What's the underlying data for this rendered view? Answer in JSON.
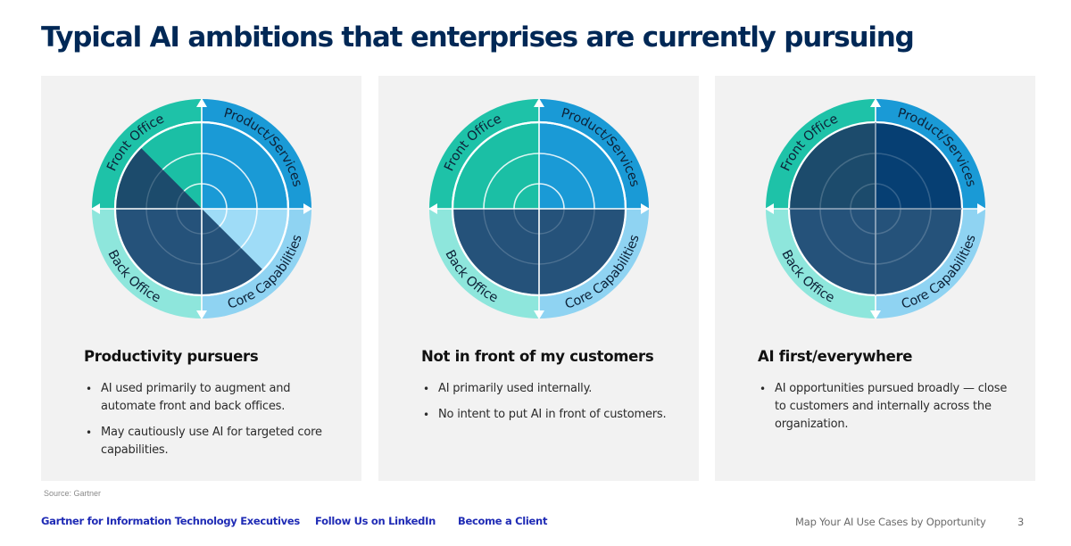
{
  "page": {
    "title": "Typical AI ambitions that enterprises are currently pursuing",
    "source": "Source: Gartner"
  },
  "wheel": {
    "labels": {
      "front_office": "Front Office",
      "product_services": "Product/Services",
      "back_office": "Back Office",
      "core_capabilities": "Core Capabilities"
    },
    "ring_colors": {
      "front_office": "#1ec2a8",
      "product_services": "#1a9ad6",
      "back_office": "#8ee6dc",
      "core_capabilities": "#8fd3f2"
    },
    "highlight_colors": {
      "dark": "#25527a",
      "darker": "#1c4b6c",
      "darkest": "#063f73"
    }
  },
  "panels": [
    {
      "id": "productivity-pursuers",
      "title": "Productivity pursuers",
      "bullets": [
        "AI used primarily to augment and automate front and back offices.",
        "May cautiously use AI for targeted core capabilities."
      ],
      "fill": {
        "front_office": "#1bbfa5",
        "product_services": "#1a9ad6",
        "back_office": "#25527a",
        "core_capabilities": "#9fdcf7",
        "diagonal_overlay": "#25527a"
      },
      "highlight": "diagonal-front-back"
    },
    {
      "id": "not-in-front-of-customers",
      "title": "Not in front of my customers",
      "bullets": [
        "AI primarily used internally.",
        "No intent to put AI in front of customers."
      ],
      "fill": {
        "front_office": "#1bbfa5",
        "product_services": "#1a9ad6",
        "back_office": "#25527a",
        "core_capabilities": "#25527a"
      },
      "highlight": "bottom-half"
    },
    {
      "id": "ai-first-everywhere",
      "title": "AI first/everywhere",
      "bullets": [
        "AI opportunities pursued broadly — close to customers and internally across the organization."
      ],
      "fill": {
        "front_office": "#1c4b6c",
        "product_services": "#063f73",
        "back_office": "#25527a",
        "core_capabilities": "#25527a"
      },
      "highlight": "full"
    }
  ],
  "footer": {
    "links": [
      "Gartner for Information Technology Executives",
      "Follow Us on LinkedIn",
      "Become a Client"
    ],
    "doc_title": "Map Your AI Use Cases by Opportunity",
    "page_number": "3"
  }
}
